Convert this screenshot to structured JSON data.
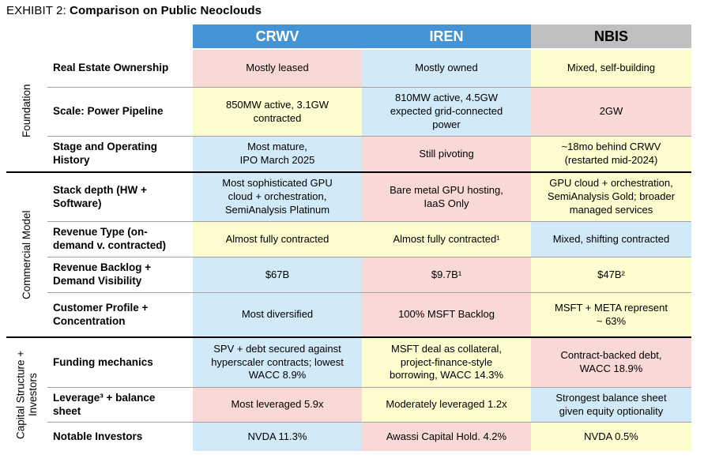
{
  "title": {
    "prefix": "EXHIBIT 2:",
    "main": "Comparison on Public Neoclouds"
  },
  "palette": {
    "header_blue": "#4493D5",
    "header_gray": "#BFBFBF",
    "pink": "#F9D9D6",
    "blue": "#D2E9F7",
    "yellow": "#FCFCCE",
    "row_line": "#A3A3A3",
    "section_line": "#000000"
  },
  "columns": [
    {
      "label": "CRWV",
      "style": "blue"
    },
    {
      "label": "IREN",
      "style": "blue"
    },
    {
      "label": "NBIS",
      "style": "gray"
    }
  ],
  "sections": [
    {
      "label": "Foundation",
      "rows": [
        {
          "label": "Real Estate Ownership",
          "cells": [
            {
              "text": "Mostly leased",
              "color": "pink"
            },
            {
              "text": "Mostly owned",
              "color": "blue"
            },
            {
              "text": "Mixed, self-building",
              "color": "yellow"
            }
          ]
        },
        {
          "label": "Scale: Power Pipeline",
          "cells": [
            {
              "text": "850MW active, 3.1GW\ncontracted",
              "color": "yellow"
            },
            {
              "text": "810MW active, 4.5GW\nexpected grid-connected\npower",
              "color": "blue"
            },
            {
              "text": "2GW",
              "color": "pink"
            }
          ]
        },
        {
          "label": "Stage and Operating\nHistory",
          "cells": [
            {
              "text": "Most mature,\nIPO March 2025",
              "color": "blue"
            },
            {
              "text": "Still pivoting",
              "color": "pink"
            },
            {
              "text": "~18mo behind CRWV\n(restarted mid-2024)",
              "color": "yellow"
            }
          ]
        }
      ]
    },
    {
      "label": "Commercial Model",
      "rows": [
        {
          "label": "Stack depth (HW +\nSoftware)",
          "cells": [
            {
              "text": "Most sophisticated GPU\ncloud + orchestration,\nSemiAnalysis Platinum",
              "color": "blue"
            },
            {
              "text": "Bare metal GPU hosting,\nIaaS Only",
              "color": "pink"
            },
            {
              "text": "GPU cloud + orchestration,\nSemiAnalysis Gold; broader\nmanaged services",
              "color": "yellow"
            }
          ]
        },
        {
          "label": "Revenue Type (on-\ndemand v. contracted)",
          "cells": [
            {
              "text": "Almost fully contracted",
              "color": "yellow"
            },
            {
              "text": "Almost fully contracted¹",
              "color": "yellow"
            },
            {
              "text": "Mixed, shifting contracted",
              "color": "blue"
            }
          ]
        },
        {
          "label": "Revenue Backlog +\nDemand Visibility",
          "cells": [
            {
              "text": "$67B",
              "color": "blue"
            },
            {
              "text": "$9.7B¹",
              "color": "pink"
            },
            {
              "text": "$47B²",
              "color": "yellow"
            }
          ]
        },
        {
          "label": "Customer Profile +\nConcentration",
          "cells": [
            {
              "text": "Most diversified",
              "color": "blue"
            },
            {
              "text": "100% MSFT Backlog",
              "color": "pink"
            },
            {
              "text": "MSFT + META represent\n~ 63%",
              "color": "yellow"
            }
          ]
        }
      ]
    },
    {
      "label": "Capital Structure +\nInvestors",
      "rows": [
        {
          "label": "Funding mechanics",
          "cells": [
            {
              "text": "SPV + debt secured against\nhyperscaler contracts; lowest\nWACC 8.9%",
              "color": "blue"
            },
            {
              "text": "MSFT deal as collateral,\nproject-finance-style\nborrowing, WACC 14.3%",
              "color": "yellow"
            },
            {
              "text": "Contract-backed debt,\nWACC 18.9%",
              "color": "pink"
            }
          ]
        },
        {
          "label": "Leverage³ + balance\nsheet",
          "cells": [
            {
              "text": "Most leveraged 5.9x",
              "color": "pink"
            },
            {
              "text": "Moderately leveraged 1.2x",
              "color": "yellow"
            },
            {
              "text": "Strongest balance sheet\ngiven equity optionality",
              "color": "blue"
            }
          ]
        },
        {
          "label": "Notable Investors",
          "cells": [
            {
              "text": "NVDA 11.3%",
              "color": "blue"
            },
            {
              "text": "Awassi Capital Hold. 4.2%",
              "color": "pink"
            },
            {
              "text": "NVDA 0.5%",
              "color": "yellow"
            }
          ]
        }
      ]
    }
  ]
}
